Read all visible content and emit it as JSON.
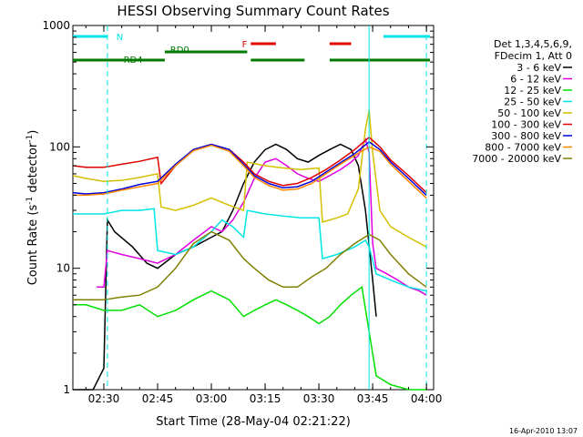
{
  "chart_data": {
    "type": "line",
    "title": "HESSI Observing Summary Count Rates",
    "xlabel": "Start Time (28-May-04 02:21:22)",
    "ylabel": "Count Rate (s",
    "ylabel_sup": "-1",
    "ylabel_tail": " detector",
    "ylabel_sup2": "-1",
    "ylabel_close": ")",
    "yscale": "log",
    "ylim": [
      1,
      1000
    ],
    "xlim": [
      "02:21:22",
      "04:02:00"
    ],
    "xticks": [
      "02:30",
      "02:45",
      "03:00",
      "03:15",
      "03:30",
      "03:45",
      "04:00"
    ],
    "yticks": [
      "1",
      "10",
      "100",
      "1000"
    ],
    "timestamp": "16-Apr-2010 13:07",
    "legend_header": [
      "Det 1,3,4,5,6,9,",
      "FDecim 1, Att 0"
    ],
    "legend_position": "right",
    "flags": [
      {
        "label": "N",
        "color": "#00e5e5",
        "segments": [
          [
            "02:21:22",
            "02:31:00"
          ],
          [
            "03:48:00",
            "04:01:00"
          ]
        ]
      },
      {
        "label": "RD0",
        "color": "#007a00",
        "segments": [
          [
            "02:47:00",
            "03:10:00"
          ]
        ]
      },
      {
        "label": "RD4",
        "color": "#007a00",
        "segments": [
          [
            "02:21:22",
            "02:47:00"
          ],
          [
            "03:11:00",
            "03:26:00"
          ],
          [
            "03:33:00",
            "04:01:00"
          ]
        ]
      },
      {
        "label": "F",
        "color": "#e00000",
        "segments": [
          [
            "03:11:00",
            "03:18:00"
          ],
          [
            "03:33:00",
            "03:39:00"
          ]
        ]
      }
    ],
    "vlines": [
      {
        "time": "02:31:00",
        "color": "#00e5e5",
        "style": "dashed"
      },
      {
        "time": "03:44:00",
        "color": "#00e5e5",
        "style": "solid"
      },
      {
        "time": "04:00:00",
        "color": "#00e5e5",
        "style": "dashed"
      }
    ],
    "series": [
      {
        "name": "3 - 6 keV",
        "color": "#000000",
        "points": [
          [
            "02:21:22",
            1
          ],
          [
            "02:27:00",
            1
          ],
          [
            "02:30:00",
            1.5
          ],
          [
            "02:31:00",
            25
          ],
          [
            "02:33:00",
            20
          ],
          [
            "02:38:00",
            15
          ],
          [
            "02:42:00",
            11
          ],
          [
            "02:45:00",
            10
          ],
          [
            "02:50:00",
            13
          ],
          [
            "02:55:00",
            15
          ],
          [
            "03:00:00",
            18
          ],
          [
            "03:03:00",
            20
          ],
          [
            "03:06:00",
            30
          ],
          [
            "03:09:00",
            50
          ],
          [
            "03:12:00",
            75
          ],
          [
            "03:15:00",
            95
          ],
          [
            "03:18:00",
            105
          ],
          [
            "03:21:00",
            95
          ],
          [
            "03:24:00",
            80
          ],
          [
            "03:27:00",
            75
          ],
          [
            "03:30:00",
            85
          ],
          [
            "03:33:00",
            95
          ],
          [
            "03:36:00",
            105
          ],
          [
            "03:39:00",
            95
          ],
          [
            "03:41:00",
            70
          ],
          [
            "03:43:00",
            30
          ],
          [
            "03:45:00",
            8
          ],
          [
            "03:46:00",
            4
          ]
        ]
      },
      {
        "name": "6 - 12 keV",
        "color": "#e000e0",
        "points": [
          [
            "02:28:00",
            7
          ],
          [
            "02:30:00",
            7
          ],
          [
            "02:31:00",
            14
          ],
          [
            "02:35:00",
            13
          ],
          [
            "02:40:00",
            12
          ],
          [
            "02:45:00",
            11
          ],
          [
            "02:50:00",
            13
          ],
          [
            "02:55:00",
            17
          ],
          [
            "03:00:00",
            22
          ],
          [
            "03:03:00",
            20
          ],
          [
            "03:06:00",
            25
          ],
          [
            "03:09:00",
            35
          ],
          [
            "03:12:00",
            55
          ],
          [
            "03:15:00",
            75
          ],
          [
            "03:18:00",
            80
          ],
          [
            "03:21:00",
            70
          ],
          [
            "03:24:00",
            60
          ],
          [
            "03:27:00",
            55
          ],
          [
            "03:30:00",
            52
          ],
          [
            "03:33:00",
            58
          ],
          [
            "03:36:00",
            65
          ],
          [
            "03:39:00",
            75
          ],
          [
            "03:41:00",
            85
          ],
          [
            "03:43:00",
            115
          ],
          [
            "03:44:00",
            90
          ],
          [
            "03:45:00",
            16
          ],
          [
            "03:46:00",
            10
          ],
          [
            "03:49:00",
            9
          ],
          [
            "03:52:00",
            8
          ],
          [
            "03:55:00",
            7
          ],
          [
            "03:58:00",
            6.5
          ],
          [
            "04:00:00",
            6
          ]
        ]
      },
      {
        "name": "12 - 25 keV",
        "color": "#00e000",
        "points": [
          [
            "02:21:22",
            5
          ],
          [
            "02:25:00",
            5
          ],
          [
            "02:30:00",
            4.5
          ],
          [
            "02:35:00",
            4.5
          ],
          [
            "02:40:00",
            5
          ],
          [
            "02:45:00",
            4
          ],
          [
            "02:50:00",
            4.5
          ],
          [
            "02:55:00",
            5.5
          ],
          [
            "03:00:00",
            6.5
          ],
          [
            "03:05:00",
            5.5
          ],
          [
            "03:09:00",
            4
          ],
          [
            "03:12:00",
            4.5
          ],
          [
            "03:15:00",
            5
          ],
          [
            "03:18:00",
            5.5
          ],
          [
            "03:21:00",
            5
          ],
          [
            "03:24:00",
            4.5
          ],
          [
            "03:27:00",
            4
          ],
          [
            "03:30:00",
            3.5
          ],
          [
            "03:33:00",
            4
          ],
          [
            "03:36:00",
            5
          ],
          [
            "03:39:00",
            6
          ],
          [
            "03:42:00",
            7
          ],
          [
            "03:44:00",
            3
          ],
          [
            "03:46:00",
            1.3
          ],
          [
            "03:50:00",
            1.1
          ],
          [
            "03:55:00",
            1
          ],
          [
            "04:00:00",
            1
          ]
        ]
      },
      {
        "name": "25 - 50 keV",
        "color": "#00e5e5",
        "points": [
          [
            "02:21:22",
            28
          ],
          [
            "02:30:00",
            28
          ],
          [
            "02:35:00",
            30
          ],
          [
            "02:40:00",
            30
          ],
          [
            "02:44:00",
            31
          ],
          [
            "02:45:00",
            14
          ],
          [
            "02:50:00",
            13
          ],
          [
            "02:55:00",
            15
          ],
          [
            "03:00:00",
            20
          ],
          [
            "03:03:00",
            25
          ],
          [
            "03:06:00",
            22
          ],
          [
            "03:09:00",
            18
          ],
          [
            "03:10:00",
            30
          ],
          [
            "03:15:00",
            28
          ],
          [
            "03:20:00",
            27
          ],
          [
            "03:25:00",
            26
          ],
          [
            "03:30:00",
            26
          ],
          [
            "03:31:00",
            12
          ],
          [
            "03:35:00",
            13
          ],
          [
            "03:40:00",
            15
          ],
          [
            "03:43:00",
            17
          ],
          [
            "03:44:00",
            15
          ],
          [
            "03:46:00",
            9
          ],
          [
            "03:50:00",
            8
          ],
          [
            "03:55:00",
            7
          ],
          [
            "04:00:00",
            6.5
          ]
        ]
      },
      {
        "name": "50 - 100 keV",
        "color": "#d4c000",
        "points": [
          [
            "02:21:22",
            58
          ],
          [
            "02:25:00",
            55
          ],
          [
            "02:30:00",
            52
          ],
          [
            "02:35:00",
            53
          ],
          [
            "02:40:00",
            56
          ],
          [
            "02:45:00",
            60
          ],
          [
            "02:46:00",
            32
          ],
          [
            "02:50:00",
            30
          ],
          [
            "02:55:00",
            33
          ],
          [
            "03:00:00",
            38
          ],
          [
            "03:05:00",
            33
          ],
          [
            "03:09:00",
            30
          ],
          [
            "03:10:00",
            75
          ],
          [
            "03:15:00",
            70
          ],
          [
            "03:20:00",
            67
          ],
          [
            "03:25:00",
            65
          ],
          [
            "03:30:00",
            67
          ],
          [
            "03:31:00",
            24
          ],
          [
            "03:35:00",
            26
          ],
          [
            "03:38:00",
            28
          ],
          [
            "03:41:00",
            45
          ],
          [
            "03:43:00",
            140
          ],
          [
            "03:44:00",
            200
          ],
          [
            "03:45:00",
            90
          ],
          [
            "03:47:00",
            30
          ],
          [
            "03:50:00",
            22
          ],
          [
            "03:55:00",
            18
          ],
          [
            "04:00:00",
            15
          ]
        ]
      },
      {
        "name": "100 - 300 keV",
        "color": "#e00000",
        "points": [
          [
            "02:21:22",
            70
          ],
          [
            "02:25:00",
            68
          ],
          [
            "02:30:00",
            68
          ],
          [
            "02:35:00",
            72
          ],
          [
            "02:40:00",
            76
          ],
          [
            "02:45:00",
            82
          ],
          [
            "02:46:00",
            50
          ],
          [
            "02:50:00",
            70
          ],
          [
            "02:55:00",
            95
          ],
          [
            "03:00:00",
            105
          ],
          [
            "03:05:00",
            95
          ],
          [
            "03:09:00",
            75
          ],
          [
            "03:12:00",
            60
          ],
          [
            "03:16:00",
            52
          ],
          [
            "03:20:00",
            48
          ],
          [
            "03:24:00",
            50
          ],
          [
            "03:28:00",
            56
          ],
          [
            "03:32:00",
            65
          ],
          [
            "03:36:00",
            78
          ],
          [
            "03:40:00",
            95
          ],
          [
            "03:44:00",
            120
          ],
          [
            "03:47:00",
            100
          ],
          [
            "03:50:00",
            78
          ],
          [
            "03:55:00",
            58
          ],
          [
            "04:00:00",
            42
          ]
        ]
      },
      {
        "name": "300 - 800 keV",
        "color": "#0000e0",
        "points": [
          [
            "02:21:22",
            42
          ],
          [
            "02:25:00",
            41
          ],
          [
            "02:30:00",
            42
          ],
          [
            "02:35:00",
            45
          ],
          [
            "02:40:00",
            49
          ],
          [
            "02:45:00",
            52
          ],
          [
            "02:50:00",
            72
          ],
          [
            "02:55:00",
            95
          ],
          [
            "03:00:00",
            105
          ],
          [
            "03:05:00",
            95
          ],
          [
            "03:09:00",
            72
          ],
          [
            "03:12:00",
            58
          ],
          [
            "03:16:00",
            50
          ],
          [
            "03:20:00",
            46
          ],
          [
            "03:24:00",
            47
          ],
          [
            "03:28:00",
            52
          ],
          [
            "03:32:00",
            62
          ],
          [
            "03:36:00",
            74
          ],
          [
            "03:40:00",
            88
          ],
          [
            "03:44:00",
            110
          ],
          [
            "03:47:00",
            95
          ],
          [
            "03:50:00",
            75
          ],
          [
            "03:55:00",
            55
          ],
          [
            "04:00:00",
            40
          ]
        ]
      },
      {
        "name": "800 - 7000 keV",
        "color": "#ff8800",
        "points": [
          [
            "02:21:22",
            40
          ],
          [
            "02:25:00",
            40
          ],
          [
            "02:30:00",
            41
          ],
          [
            "02:35:00",
            44
          ],
          [
            "02:40:00",
            47
          ],
          [
            "02:45:00",
            50
          ],
          [
            "02:50:00",
            70
          ],
          [
            "02:55:00",
            93
          ],
          [
            "03:00:00",
            103
          ],
          [
            "03:05:00",
            92
          ],
          [
            "03:09:00",
            70
          ],
          [
            "03:12:00",
            56
          ],
          [
            "03:16:00",
            48
          ],
          [
            "03:20:00",
            44
          ],
          [
            "03:24:00",
            45
          ],
          [
            "03:28:00",
            50
          ],
          [
            "03:32:00",
            60
          ],
          [
            "03:36:00",
            72
          ],
          [
            "03:40:00",
            85
          ],
          [
            "03:44:00",
            100
          ],
          [
            "03:47:00",
            92
          ],
          [
            "03:50:00",
            72
          ],
          [
            "03:55:00",
            52
          ],
          [
            "04:00:00",
            38
          ]
        ]
      },
      {
        "name": "7000 - 20000 keV",
        "color": "#808000",
        "points": [
          [
            "02:21:22",
            5.5
          ],
          [
            "02:25:00",
            5.5
          ],
          [
            "02:30:00",
            5.5
          ],
          [
            "02:35:00",
            5.8
          ],
          [
            "02:40:00",
            6
          ],
          [
            "02:45:00",
            7
          ],
          [
            "02:50:00",
            10
          ],
          [
            "02:55:00",
            16
          ],
          [
            "03:00:00",
            20
          ],
          [
            "03:05:00",
            17
          ],
          [
            "03:09:00",
            12
          ],
          [
            "03:12:00",
            10
          ],
          [
            "03:16:00",
            8
          ],
          [
            "03:20:00",
            7
          ],
          [
            "03:24:00",
            7
          ],
          [
            "03:28:00",
            8.5
          ],
          [
            "03:32:00",
            10
          ],
          [
            "03:36:00",
            13
          ],
          [
            "03:40:00",
            16
          ],
          [
            "03:44:00",
            19
          ],
          [
            "03:47:00",
            17
          ],
          [
            "03:50:00",
            13
          ],
          [
            "03:55:00",
            9
          ],
          [
            "04:00:00",
            7
          ]
        ]
      }
    ]
  }
}
